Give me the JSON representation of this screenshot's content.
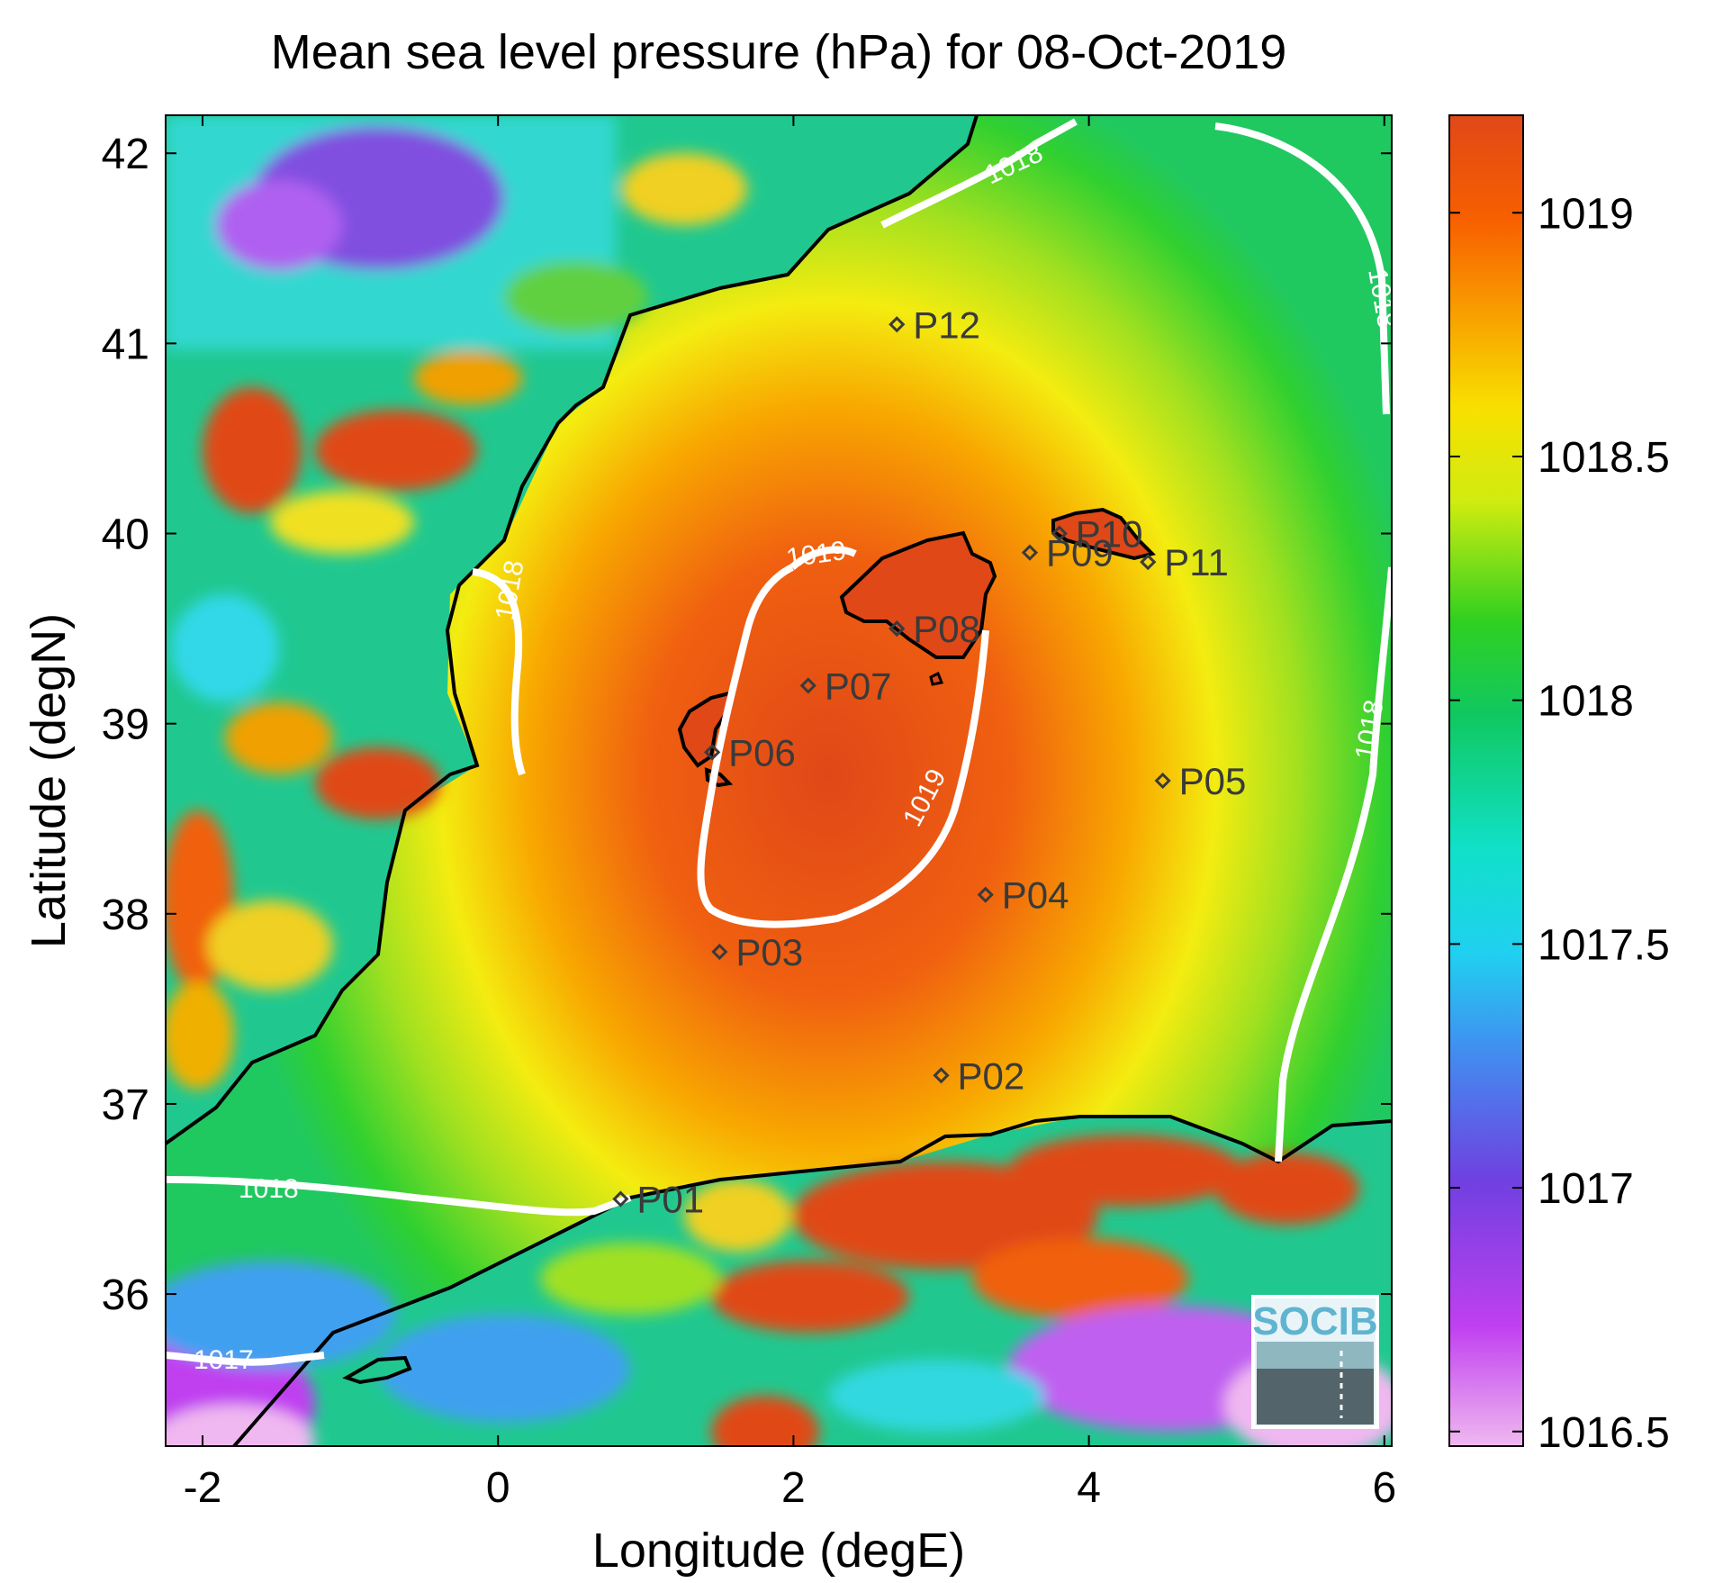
{
  "title": "Mean sea level pressure (hPa) for 08-Oct-2019",
  "axes": {
    "xlabel": "Longitude (degE)",
    "ylabel": "Latitude (degN)",
    "xlim": [
      -2.25,
      6.05
    ],
    "ylim": [
      35.2,
      42.2
    ],
    "xticks": [
      -2,
      0,
      2,
      4,
      6
    ],
    "yticks": [
      36,
      37,
      38,
      39,
      40,
      41,
      42
    ],
    "xtick_labels": [
      "-2",
      "0",
      "2",
      "4",
      "6"
    ],
    "ytick_labels": [
      "36",
      "37",
      "38",
      "39",
      "40",
      "41",
      "42"
    ]
  },
  "colorbar": {
    "min": 1016.47,
    "max": 1019.2,
    "ticks": [
      1016.5,
      1017,
      1017.5,
      1018,
      1018.5,
      1019
    ],
    "tick_labels": [
      "1016.5",
      "1017",
      "1017.5",
      "1018",
      "1018.5",
      "1019"
    ],
    "colormap": [
      "#f0b8f0",
      "#c040f0",
      "#7040e0",
      "#30a0f0",
      "#10e8d8",
      "#10c870",
      "#30d020",
      "#a0e020",
      "#f0f010",
      "#f8c000",
      "#f87000",
      "#e04818"
    ]
  },
  "map": {
    "stations": [
      {
        "label": "P01",
        "lon": 0.83,
        "lat": 36.5
      },
      {
        "label": "P02",
        "lon": 3.0,
        "lat": 37.15
      },
      {
        "label": "P03",
        "lon": 1.5,
        "lat": 37.8
      },
      {
        "label": "P04",
        "lon": 3.3,
        "lat": 38.1
      },
      {
        "label": "P05",
        "lon": 4.5,
        "lat": 38.7
      },
      {
        "label": "P06",
        "lon": 1.45,
        "lat": 38.85
      },
      {
        "label": "P07",
        "lon": 2.1,
        "lat": 39.2
      },
      {
        "label": "P08",
        "lon": 2.7,
        "lat": 39.5
      },
      {
        "label": "P09",
        "lon": 3.6,
        "lat": 39.9
      },
      {
        "label": "P10",
        "lon": 3.8,
        "lat": 40.0
      },
      {
        "label": "P11",
        "lon": 4.4,
        "lat": 39.85
      },
      {
        "label": "P12",
        "lon": 2.7,
        "lat": 41.1
      }
    ],
    "contour_labels": [
      "1019",
      "1019",
      "1018",
      "1018",
      "1018",
      "1018",
      "1018",
      "1017"
    ],
    "logo_text": "SOCIB"
  }
}
